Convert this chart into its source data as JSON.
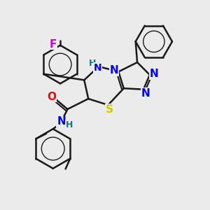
{
  "background_color": "#ebebeb",
  "bond_color": "#1a1a1a",
  "bond_width": 1.8,
  "atoms": {
    "F": {
      "color": "#cc00cc",
      "fontsize": 11,
      "fontweight": "bold"
    },
    "N": {
      "color": "#0000ff",
      "fontsize": 11,
      "fontweight": "bold"
    },
    "NH_ring": {
      "color": "#0000ff",
      "fontsize": 10,
      "fontweight": "bold"
    },
    "NH_teal": {
      "color": "#008080",
      "fontsize": 10,
      "fontweight": "bold"
    },
    "O": {
      "color": "#ff0000",
      "fontsize": 11,
      "fontweight": "bold"
    },
    "S": {
      "color": "#cccc00",
      "fontsize": 11,
      "fontweight": "bold"
    },
    "H_teal": {
      "color": "#008080",
      "fontsize": 9,
      "fontweight": "bold"
    }
  },
  "figsize": [
    3.0,
    3.0
  ],
  "dpi": 100
}
